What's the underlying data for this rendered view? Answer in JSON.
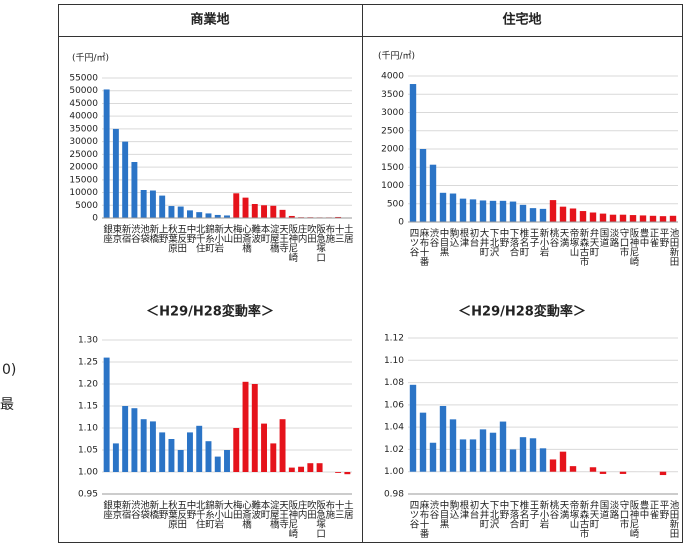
{
  "margin_fragments": [
    "0)",
    "最"
  ],
  "chart_data": [
    {
      "type": "bar",
      "title": "商業地",
      "y_label": "(千円/㎡)",
      "categories": [
        "銀座",
        "東京",
        "新宿",
        "渋谷",
        "池袋",
        "新橋",
        "上野",
        "秋葉原",
        "五反田",
        "中野",
        "北千住",
        "錦糸町",
        "新小岩",
        "大山",
        "梅田",
        "心斎橋",
        "難波",
        "本町",
        "淀屋橋",
        "天王寺",
        "阪神尼崎",
        "庄内",
        "吹田",
        "阪急塚口",
        "布施",
        "十三",
        "土居"
      ],
      "values": [
        50500,
        35000,
        30000,
        22000,
        11000,
        10800,
        8800,
        4700,
        4500,
        3000,
        2300,
        1800,
        1200,
        1000,
        9700,
        8000,
        5500,
        5000,
        4800,
        3200,
        800,
        300,
        300,
        250,
        250,
        400,
        200
      ],
      "bar_colors": [
        "#2b74c6",
        "#2b74c6",
        "#2b74c6",
        "#2b74c6",
        "#2b74c6",
        "#2b74c6",
        "#2b74c6",
        "#2b74c6",
        "#2b74c6",
        "#2b74c6",
        "#2b74c6",
        "#2b74c6",
        "#2b74c6",
        "#2b74c6",
        "#e5131b",
        "#e5131b",
        "#e5131b",
        "#e5131b",
        "#e5131b",
        "#e5131b",
        "#e5131b",
        "#e5131b",
        "#e5131b",
        "#e5131b",
        "#e5131b",
        "#e5131b",
        "#e5131b"
      ],
      "baseline": 0,
      "ylim": [
        0,
        55000
      ],
      "yticks": [
        0,
        5000,
        10000,
        15000,
        20000,
        25000,
        30000,
        35000,
        40000,
        45000,
        50000,
        55000
      ],
      "grid": true
    },
    {
      "type": "bar",
      "title": "住宅地",
      "y_label": "(千円/㎡)",
      "categories": [
        "四ツ谷",
        "麻布十番",
        "渋谷",
        "中目黒",
        "駒込",
        "根津",
        "初台",
        "大井町",
        "下北沢",
        "中野",
        "下落合",
        "椎名町",
        "王子",
        "新小岩",
        "桃谷",
        "天満",
        "帝塚山",
        "新森古市",
        "弁天町",
        "国道",
        "淡路",
        "守口市",
        "阪神尼崎",
        "豊中",
        "正雀",
        "平野",
        "池田新田"
      ],
      "values": [
        3780,
        2000,
        1570,
        800,
        780,
        640,
        620,
        590,
        580,
        580,
        560,
        470,
        380,
        360,
        600,
        420,
        370,
        300,
        260,
        230,
        200,
        200,
        190,
        180,
        170,
        160,
        170
      ],
      "bar_colors": [
        "#2b74c6",
        "#2b74c6",
        "#2b74c6",
        "#2b74c6",
        "#2b74c6",
        "#2b74c6",
        "#2b74c6",
        "#2b74c6",
        "#2b74c6",
        "#2b74c6",
        "#2b74c6",
        "#2b74c6",
        "#2b74c6",
        "#2b74c6",
        "#e5131b",
        "#e5131b",
        "#e5131b",
        "#e5131b",
        "#e5131b",
        "#e5131b",
        "#e5131b",
        "#e5131b",
        "#e5131b",
        "#e5131b",
        "#e5131b",
        "#e5131b",
        "#e5131b"
      ],
      "baseline": 0,
      "ylim": [
        0,
        4000
      ],
      "yticks": [
        0,
        500,
        1000,
        1500,
        2000,
        2500,
        3000,
        3500,
        4000
      ],
      "grid": true
    },
    {
      "type": "bar",
      "title": "＜H29/H28変動率＞",
      "categories": [
        "銀座",
        "東京",
        "新宿",
        "渋谷",
        "池袋",
        "新橋",
        "上野",
        "秋葉原",
        "五反田",
        "中野",
        "北千住",
        "錦糸町",
        "新小岩",
        "大山",
        "梅田",
        "心斎橋",
        "難波",
        "本町",
        "淀屋橋",
        "天王寺",
        "阪神尼崎",
        "庄内",
        "吹田",
        "阪急塚口",
        "布施",
        "十三",
        "土居"
      ],
      "values": [
        1.26,
        1.065,
        1.15,
        1.145,
        1.12,
        1.115,
        1.09,
        1.075,
        1.05,
        1.09,
        1.105,
        1.07,
        1.035,
        1.05,
        1.1,
        1.205,
        1.2,
        1.11,
        1.065,
        1.12,
        1.01,
        1.012,
        1.02,
        1.02,
        1.0,
        0.998,
        0.995
      ],
      "bar_colors": [
        "#2b74c6",
        "#2b74c6",
        "#2b74c6",
        "#2b74c6",
        "#2b74c6",
        "#2b74c6",
        "#2b74c6",
        "#2b74c6",
        "#2b74c6",
        "#2b74c6",
        "#2b74c6",
        "#2b74c6",
        "#2b74c6",
        "#2b74c6",
        "#e5131b",
        "#e5131b",
        "#e5131b",
        "#e5131b",
        "#e5131b",
        "#e5131b",
        "#e5131b",
        "#e5131b",
        "#e5131b",
        "#e5131b",
        "#e5131b",
        "#e5131b",
        "#e5131b"
      ],
      "baseline": 1,
      "ylim": [
        0.95,
        1.3
      ],
      "yticks": [
        0.95,
        {
          "value": 1,
          "label": "1.00"
        },
        1.05,
        {
          "value": 1.1,
          "label": "1.10"
        },
        1.15,
        {
          "value": 1.2,
          "label": "1.20"
        },
        1.25,
        {
          "value": 1.3,
          "label": "1.30"
        }
      ],
      "grid": true
    },
    {
      "type": "bar",
      "title": "＜H29/H28変動率＞",
      "categories": [
        "四ツ谷",
        "麻布十番",
        "渋谷",
        "中目黒",
        "駒込",
        "根津",
        "初台",
        "大井町",
        "下北沢",
        "中野",
        "下落合",
        "椎名町",
        "王子",
        "新小岩",
        "桃谷",
        "天満",
        "帝塚山",
        "新森古市",
        "弁天町",
        "国道",
        "淡路",
        "守口市",
        "阪神尼崎",
        "豊中",
        "正雀",
        "平野",
        "池田新田"
      ],
      "values": [
        1.078,
        1.053,
        1.026,
        1.059,
        1.047,
        1.029,
        1.029,
        1.038,
        1.035,
        1.045,
        1.02,
        1.031,
        1.03,
        1.021,
        1.011,
        1.018,
        1.005,
        1.0,
        1.004,
        0.998,
        1.0,
        0.998,
        1.0,
        1.0,
        1.0,
        0.997,
        1.0
      ],
      "bar_colors": [
        "#2b74c6",
        "#2b74c6",
        "#2b74c6",
        "#2b74c6",
        "#2b74c6",
        "#2b74c6",
        "#2b74c6",
        "#2b74c6",
        "#2b74c6",
        "#2b74c6",
        "#2b74c6",
        "#2b74c6",
        "#2b74c6",
        "#2b74c6",
        "#e5131b",
        "#e5131b",
        "#e5131b",
        "#e5131b",
        "#e5131b",
        "#e5131b",
        "#e5131b",
        "#e5131b",
        "#e5131b",
        "#e5131b",
        "#e5131b",
        "#e5131b",
        "#e5131b"
      ],
      "baseline": 1,
      "ylim": [
        0.98,
        1.12
      ],
      "yticks": [
        0.98,
        {
          "value": 1,
          "label": "1.00"
        },
        1.02,
        1.04,
        1.06,
        1.08,
        {
          "value": 1.1,
          "label": "1.10"
        },
        1.12
      ],
      "grid": true
    }
  ]
}
